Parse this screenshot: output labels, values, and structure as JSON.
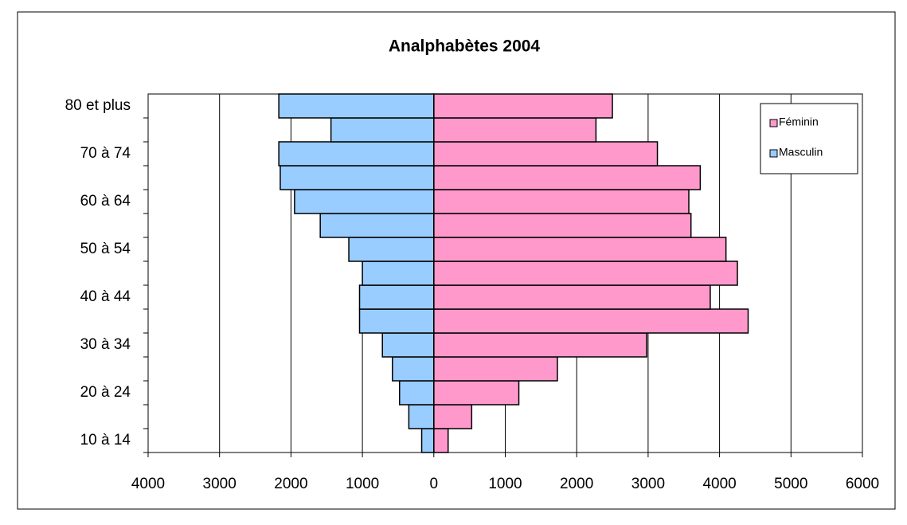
{
  "chart_data": {
    "type": "bar",
    "orientation": "horizontal",
    "stacked": false,
    "title": "Analphabètes 2004",
    "categories": [
      "10 à 14",
      null,
      "20 à 24",
      null,
      "30 à 34",
      null,
      "40 à 44",
      null,
      "50 à 54",
      null,
      "60 à 64",
      null,
      "70 à 74",
      null,
      "80 et plus"
    ],
    "series": [
      {
        "name": "Féminin",
        "color": "#ff99cc",
        "values": [
          200,
          530,
          1190,
          1730,
          2980,
          4400,
          3870,
          4250,
          4090,
          3600,
          3570,
          3730,
          3130,
          2270,
          2500
        ]
      },
      {
        "name": "Masculin",
        "color": "#99ccff",
        "values": [
          -170,
          -350,
          -480,
          -580,
          -720,
          -1040,
          -1040,
          -1000,
          -1190,
          -1590,
          -1950,
          -2150,
          -2170,
          -1440,
          -2170
        ]
      }
    ],
    "xlim": [
      -4000,
      6000
    ],
    "xticks": [
      {
        "value": -4000,
        "label": "4000"
      },
      {
        "value": -3000,
        "label": "3000"
      },
      {
        "value": -2000,
        "label": "2000"
      },
      {
        "value": -1000,
        "label": "1000"
      },
      0,
      1000,
      2000,
      3000,
      4000,
      5000,
      6000
    ],
    "grid": true,
    "legend": "top-right"
  }
}
